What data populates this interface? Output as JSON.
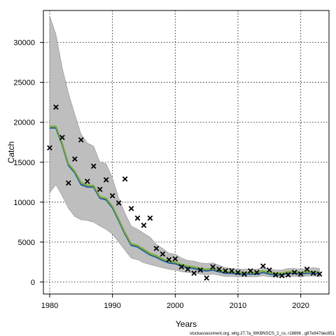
{
  "chart_data": {
    "type": "line",
    "xlabel": "Years",
    "ylabel": "Catch",
    "xlim": [
      1979,
      2024.5
    ],
    "ylim": [
      -1500,
      34000
    ],
    "xticks": [
      1980,
      1990,
      2000,
      2010,
      2020
    ],
    "yticks": [
      0,
      5000,
      10000,
      15000,
      20000,
      25000,
      30000
    ],
    "grid": true,
    "footer": "stockassessment.org, whg.27.7a_WKBNSCS_2_cs, r18696 , g87e947dec851",
    "colors": {
      "band": "#bebebe",
      "band_edge": "#8c8c8c",
      "line_blue": "#1f5fa8",
      "line_green": "#7ab648",
      "line_olive": "#8a9a2a",
      "points": "#000000"
    },
    "years": [
      1980,
      1981,
      1982,
      1983,
      1984,
      1985,
      1986,
      1987,
      1988,
      1989,
      1990,
      1991,
      1992,
      1993,
      1994,
      1995,
      1996,
      1997,
      1998,
      1999,
      2000,
      2001,
      2002,
      2003,
      2004,
      2005,
      2006,
      2007,
      2008,
      2009,
      2010,
      2011,
      2012,
      2013,
      2014,
      2015,
      2016,
      2017,
      2018,
      2019,
      2020,
      2021,
      2022,
      2023
    ],
    "series": [
      {
        "values": [
          19300,
          19300,
          17200,
          14600,
          13700,
          12200,
          11900,
          11900,
          10500,
          10300,
          9300,
          7700,
          6000,
          4600,
          4400,
          3900,
          3400,
          3100,
          2700,
          2400,
          2300,
          2000,
          1800,
          1700,
          1500,
          1400,
          1500,
          1300,
          1100,
          1100,
          1000,
          1000,
          1000,
          1000,
          1200,
          1000,
          900,
          900,
          1100,
          1100,
          1000,
          1100,
          1100,
          1000
        ]
      },
      {
        "values": [
          19500,
          19500,
          17400,
          14800,
          13900,
          12500,
          12100,
          12100,
          10700,
          10500,
          9500,
          7900,
          6200,
          4800,
          4600,
          4100,
          3600,
          3300,
          2900,
          2600,
          2500,
          2200,
          2000,
          1900,
          1700,
          1600,
          1700,
          1500,
          1300,
          1300,
          1200,
          1200,
          1200,
          1200,
          1400,
          1200,
          1100,
          1100,
          1300,
          1300,
          1200,
          1300,
          1300,
          1200
        ]
      }
    ],
    "confidence_band": {
      "upper": [
        33300,
        31000,
        26800,
        23600,
        21000,
        18500,
        17400,
        17000,
        15000,
        14800,
        13000,
        10500,
        8600,
        7000,
        6600,
        6100,
        5600,
        4700,
        4200,
        3600,
        3500,
        3000,
        2700,
        2600,
        2400,
        2300,
        2400,
        2100,
        1800,
        1700,
        1600,
        1600,
        1600,
        1600,
        1800,
        1600,
        1500,
        1500,
        1700,
        1700,
        1600,
        1700,
        1800,
        1700
      ],
      "lower": [
        11200,
        12200,
        10800,
        9200,
        8200,
        7800,
        7700,
        7500,
        7000,
        6600,
        6000,
        5000,
        4000,
        3000,
        2800,
        2400,
        2200,
        2000,
        1800,
        1600,
        1500,
        1300,
        1200,
        1100,
        1000,
        900,
        1000,
        850,
        700,
        700,
        650,
        650,
        650,
        650,
        800,
        650,
        600,
        600,
        700,
        700,
        650,
        750,
        750,
        650
      ]
    },
    "observed": {
      "x": [
        1980,
        1981,
        1982,
        1983,
        1984,
        1985,
        1986,
        1987,
        1988,
        1989,
        1990,
        1991,
        1992,
        1993,
        1994,
        1995,
        1996,
        1997,
        1998,
        1999,
        2000,
        2001,
        2002,
        2003,
        2004,
        2005,
        2006,
        2007,
        2008,
        2009,
        2010,
        2011,
        2012,
        2013,
        2014,
        2015,
        2016,
        2017,
        2018,
        2019,
        2020,
        2021,
        2022,
        2023
      ],
      "y": [
        16800,
        21900,
        18100,
        12400,
        15400,
        17800,
        12600,
        14500,
        11600,
        12800,
        10800,
        9900,
        12900,
        9200,
        8000,
        7100,
        8000,
        4200,
        3500,
        2800,
        2900,
        1900,
        1600,
        1100,
        1500,
        500,
        1900,
        1600,
        1400,
        1400,
        1200,
        1000,
        1400,
        1200,
        2000,
        1500,
        900,
        800,
        900,
        1200,
        1000,
        1600,
        1100,
        1000
      ]
    }
  }
}
